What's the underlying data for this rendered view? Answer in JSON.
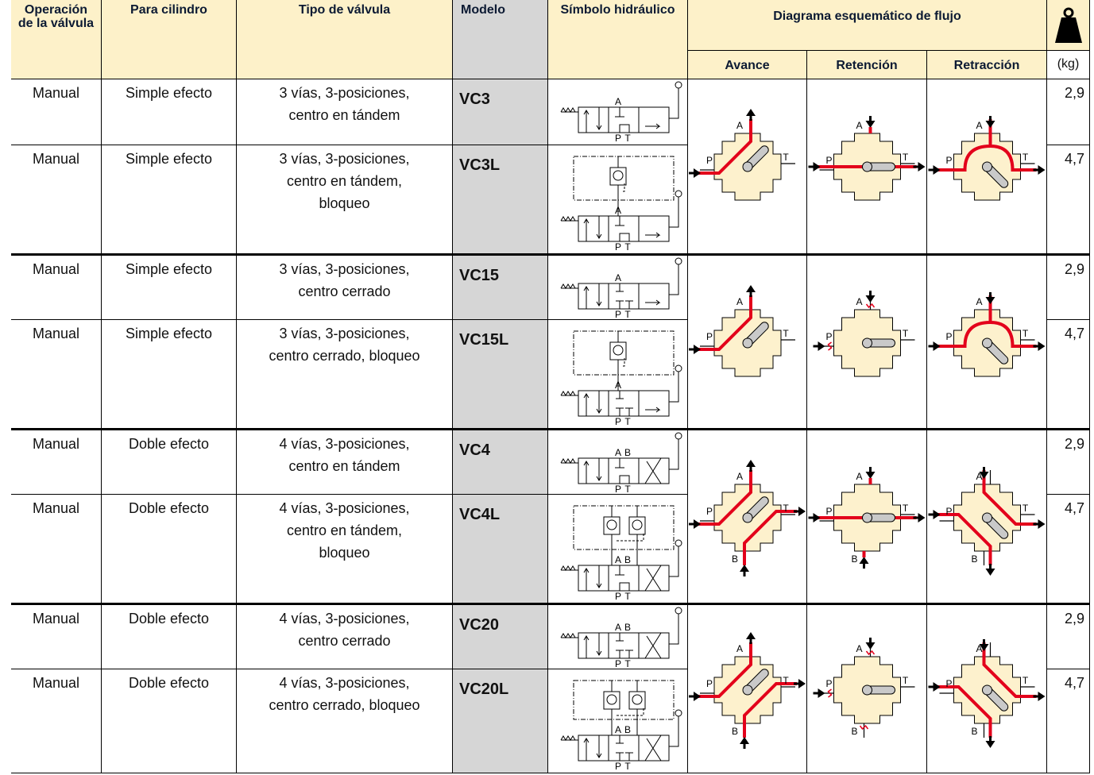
{
  "header": {
    "operation": "Operación de la válvula",
    "cylinder": "Para cilindro",
    "valve_type": "Tipo de válvula",
    "model": "Modelo",
    "symbol": "Símbolo hidráulico",
    "flow_diagram": "Diagrama esquemático de flujo",
    "advance": "Avance",
    "hold": "Retención",
    "retract": "Retracción",
    "weight_unit": "(kg)"
  },
  "ports": [
    "A",
    "B",
    "P",
    "T"
  ],
  "rows": [
    {
      "operation": "Manual",
      "cylinder": "Simple efecto",
      "valve_type": "3 vías, 3-posiciones, centro en tándem",
      "model": "VC3",
      "weight": "2,9"
    },
    {
      "operation": "Manual",
      "cylinder": "Simple efecto",
      "valve_type": "3 vías, 3-posiciones, centro en tándem, bloqueo",
      "model": "VC3L",
      "weight": "4,7"
    },
    {
      "operation": "Manual",
      "cylinder": "Simple efecto",
      "valve_type": "3 vías, 3-posiciones, centro cerrado",
      "model": "VC15",
      "weight": "2,9"
    },
    {
      "operation": "Manual",
      "cylinder": "Simple efecto",
      "valve_type": "3 vías, 3-posiciones, centro cerrado, bloqueo",
      "model": "VC15L",
      "weight": "4,7"
    },
    {
      "operation": "Manual",
      "cylinder": "Doble efecto",
      "valve_type": "4 vías, 3-posiciones, centro en tándem",
      "model": "VC4",
      "weight": "2,9"
    },
    {
      "operation": "Manual",
      "cylinder": "Doble efecto",
      "valve_type": "4 vías, 3-posiciones, centro en tándem, bloqueo",
      "model": "VC4L",
      "weight": "4,7"
    },
    {
      "operation": "Manual",
      "cylinder": "Doble efecto",
      "valve_type": "4 vías, 3-posiciones, centro cerrado",
      "model": "VC20",
      "weight": "2,9"
    },
    {
      "operation": "Manual",
      "cylinder": "Doble efecto",
      "valve_type": "4 vías, 3-posiciones, centro cerrado, bloqueo",
      "model": "VC20L",
      "weight": "4,7"
    }
  ]
}
